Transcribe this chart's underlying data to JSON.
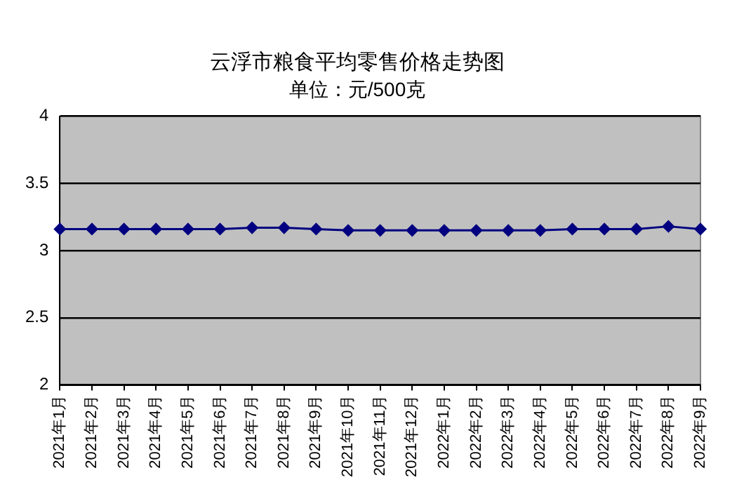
{
  "chart_data": {
    "type": "line",
    "title": "云浮市粮食平均零售价格走势图",
    "subtitle": "单位：元/500克",
    "categories": [
      "2021年1月",
      "2021年2月",
      "2021年3月",
      "2021年4月",
      "2021年5月",
      "2021年6月",
      "2021年7月",
      "2021年8月",
      "2021年9月",
      "2021年10月",
      "2021年11月",
      "2021年12月",
      "2022年1月",
      "2022年2月",
      "2022年3月",
      "2022年4月",
      "2022年5月",
      "2022年6月",
      "2022年7月",
      "2022年8月",
      "2022年9月"
    ],
    "series": [
      {
        "color": "#000080",
        "values": [
          3.16,
          3.16,
          3.16,
          3.16,
          3.16,
          3.16,
          3.17,
          3.17,
          3.16,
          3.15,
          3.15,
          3.15,
          3.15,
          3.15,
          3.15,
          3.15,
          3.16,
          3.16,
          3.16,
          3.18,
          3.16
        ]
      }
    ],
    "ylim": [
      2,
      4
    ],
    "yticks": [
      2,
      2.5,
      3,
      3.5,
      4
    ],
    "grid": "y",
    "legend": false,
    "marker": "diamond",
    "line_style": "solid"
  }
}
